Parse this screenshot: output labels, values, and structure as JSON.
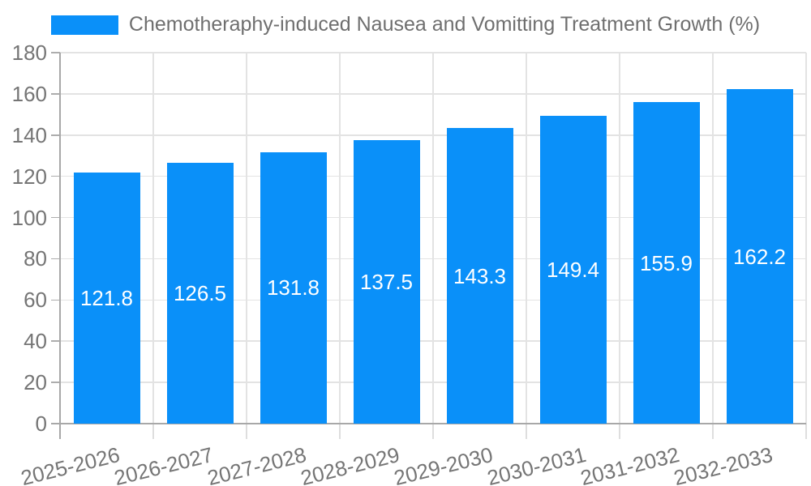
{
  "legend": {
    "label": "Chemotheraphy-induced Nausea and Vomitting Treatment Growth (%)",
    "swatch_color": "#0a90f9"
  },
  "chart_data": {
    "type": "bar",
    "title": "Chemotheraphy-induced Nausea and Vomitting Treatment Growth (%)",
    "categories": [
      "2025-2026",
      "2026-2027",
      "2027-2028",
      "2028-2029",
      "2029-2030",
      "2030-2031",
      "2031-2032",
      "2032-2033"
    ],
    "values": [
      121.8,
      126.5,
      131.8,
      137.5,
      143.3,
      149.4,
      155.9,
      162.2
    ],
    "value_labels": [
      "121.8",
      "126.5",
      "131.8",
      "137.5",
      "143.3",
      "149.4",
      "155.9",
      "162.2"
    ],
    "xlabel": "",
    "ylabel": "",
    "ylim": [
      0,
      180
    ],
    "ytick_step": 20,
    "y_tick_labels": [
      "0",
      "20",
      "40",
      "60",
      "80",
      "100",
      "120",
      "140",
      "160",
      "180"
    ],
    "grid": true,
    "legend_position": "top",
    "bar_color": "#0a90f9",
    "value_label_color": "#ffffff"
  },
  "colors": {
    "background": "#ffffff",
    "grid": "#e3e3e3",
    "axis": "#a8a8a8",
    "y_tick": "#adadad",
    "x_tick": "#dedede",
    "tick_text": "#757575",
    "title_text": "#6f6f6f"
  }
}
